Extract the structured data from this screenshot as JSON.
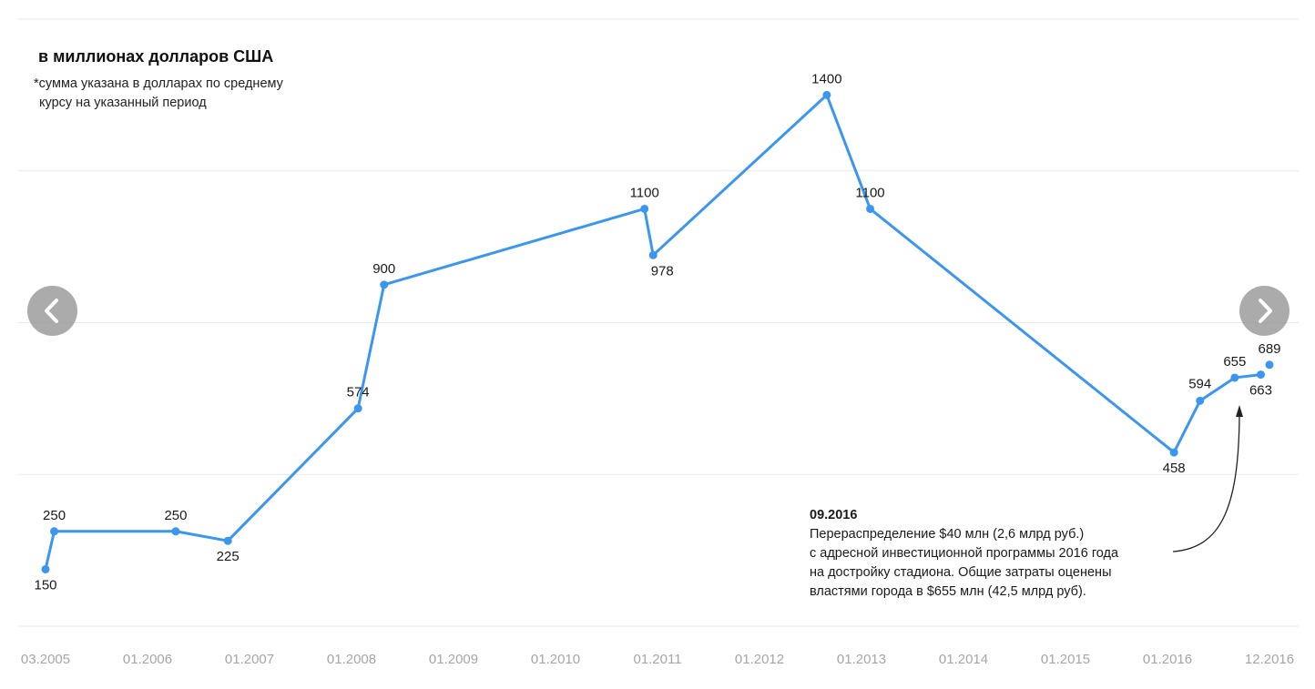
{
  "chart_data": {
    "type": "line",
    "title": "в миллионах долларов США",
    "note_lines": [
      "*сумма указана в долларах по среднему",
      "курсу на указанный период"
    ],
    "x_ticks": [
      "03.2005",
      "01.2006",
      "01.2007",
      "01.2008",
      "01.2009",
      "01.2010",
      "01.2011",
      "01.2012",
      "01.2013",
      "01.2014",
      "01.2015",
      "01.2016",
      "12.2016"
    ],
    "xlim": [
      "2005-03",
      "2016-12"
    ],
    "ylim": [
      0,
      1600
    ],
    "grid": true,
    "series": [
      {
        "color": "#3b96f0",
        "points": [
          {
            "x": "2005-03",
            "y": 150
          },
          {
            "x": "2005-04",
            "y": 250
          },
          {
            "x": "2006-06",
            "y": 250
          },
          {
            "x": "2006-12",
            "y": 225
          },
          {
            "x": "2008-03",
            "y": 574
          },
          {
            "x": "2008-06",
            "y": 900
          },
          {
            "x": "2010-12",
            "y": 1100
          },
          {
            "x": "2011-01",
            "y": 978
          },
          {
            "x": "2012-09",
            "y": 1400
          },
          {
            "x": "2013-02",
            "y": 1100
          },
          {
            "x": "2016-01",
            "y": 458
          },
          {
            "x": "2016-04",
            "y": 594
          },
          {
            "x": "2016-08",
            "y": 655
          },
          {
            "x": "2016-11",
            "y": 663
          }
        ]
      }
    ],
    "extra_points": [
      {
        "x": "2016-12",
        "y": 689
      }
    ],
    "annotation": {
      "date": "09.2016",
      "lines": [
        "Перераспределение $40 млн (2,6 млрд руб.)",
        "с адресной инвестиционной программы 2016 года",
        "на достройку стадиона. Общие затраты оценены",
        "властями города в $655 млн (42,5 млрд руб)."
      ]
    }
  },
  "navigation": {
    "prev": "chevron-left-icon",
    "next": "chevron-right-icon"
  }
}
